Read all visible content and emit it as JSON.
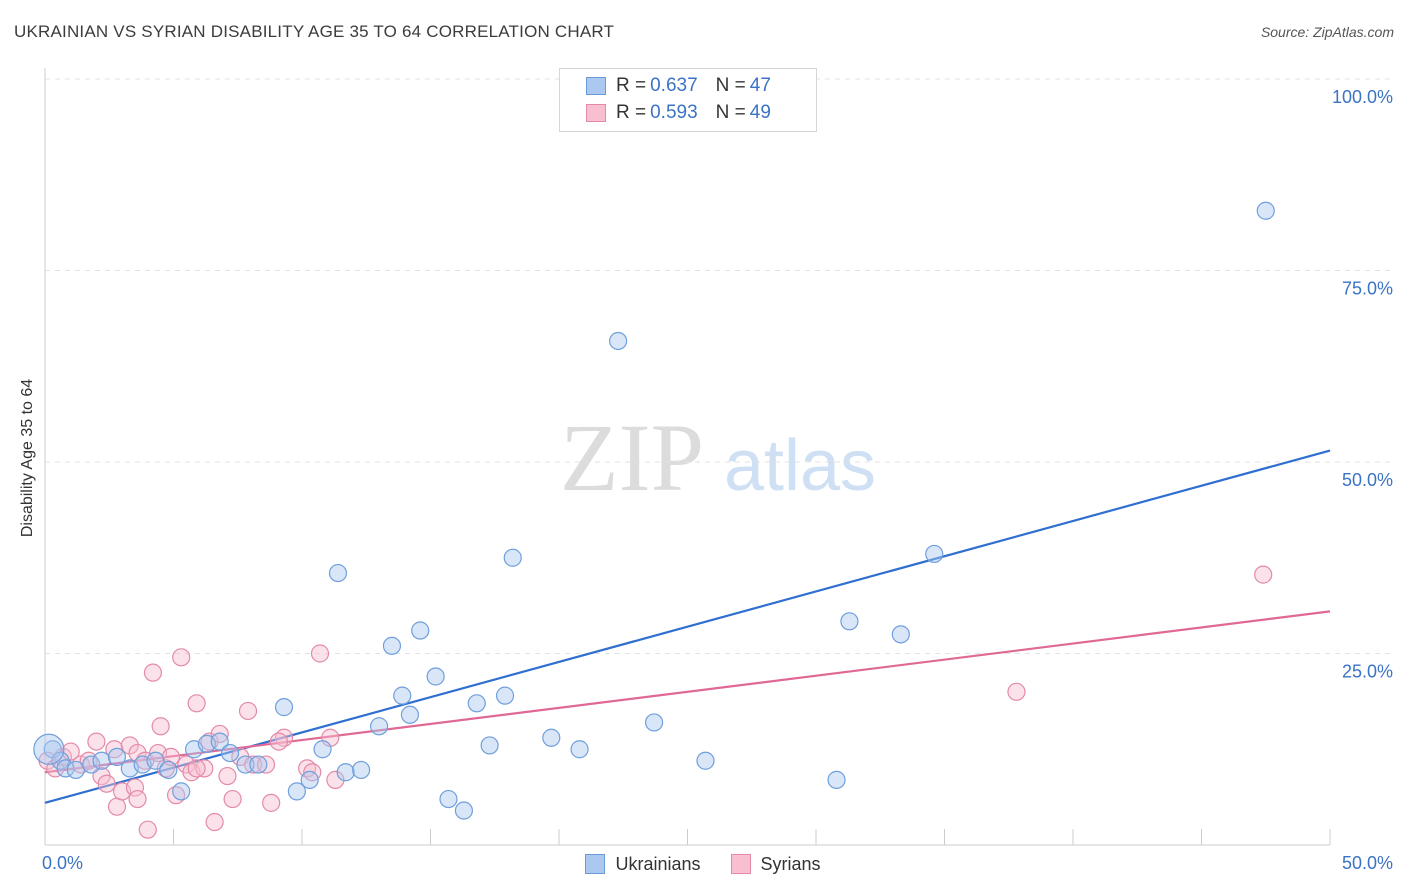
{
  "title": "UKRAINIAN VS SYRIAN DISABILITY AGE 35 TO 64 CORRELATION CHART",
  "source": "Source: ZipAtlas.com",
  "watermark": {
    "zip": "ZIP",
    "atlas": "atlas"
  },
  "legend": {
    "r_label": "R =",
    "n_label": "N =",
    "rows": [
      {
        "r": "0.637",
        "n": "47",
        "color": "#aac8f0",
        "border": "#6a9ad8"
      },
      {
        "r": "0.593",
        "n": "49",
        "color": "#f7bfd0",
        "border": "#e48aa8"
      }
    ]
  },
  "bottom_legend": [
    "Ukrainians",
    "Syrians"
  ],
  "chart_data": {
    "type": "scatter",
    "title": "UKRAINIAN VS SYRIAN DISABILITY AGE 35 TO 64 CORRELATION CHART",
    "xlabel": "",
    "ylabel": "Disability Age 35 to 64",
    "xlim": [
      0,
      50
    ],
    "ylim": [
      0,
      100
    ],
    "x_tick_labels": [
      "0.0%",
      "50.0%"
    ],
    "y_ticks": [
      25,
      50,
      75,
      100
    ],
    "y_tick_labels": [
      "25.0%",
      "50.0%",
      "75.0%",
      "100.0%"
    ],
    "series": [
      {
        "name": "Ukrainians",
        "color": "#6f9fdc",
        "fill": "#aac8f0",
        "line_color": "#2f6fd0",
        "trend": {
          "x": [
            0,
            50
          ],
          "y": [
            5.5,
            51.5
          ]
        },
        "points": [
          [
            0.3,
            12.5
          ],
          [
            0.6,
            11
          ],
          [
            0.8,
            10
          ],
          [
            1.2,
            9.8
          ],
          [
            1.8,
            10.5
          ],
          [
            2.2,
            11
          ],
          [
            2.8,
            11.5
          ],
          [
            3.3,
            10
          ],
          [
            3.8,
            10.5
          ],
          [
            4.3,
            11
          ],
          [
            4.8,
            9.8
          ],
          [
            5.3,
            7
          ],
          [
            5.8,
            12.5
          ],
          [
            6.3,
            13.2
          ],
          [
            6.8,
            13.5
          ],
          [
            7.2,
            12
          ],
          [
            7.8,
            10.5
          ],
          [
            8.3,
            10.5
          ],
          [
            9.3,
            18
          ],
          [
            9.8,
            7
          ],
          [
            10.3,
            8.5
          ],
          [
            10.8,
            12.5
          ],
          [
            11.4,
            35.5
          ],
          [
            11.7,
            9.5
          ],
          [
            12.3,
            9.8
          ],
          [
            13.0,
            15.5
          ],
          [
            13.5,
            26
          ],
          [
            13.9,
            19.5
          ],
          [
            14.2,
            17
          ],
          [
            14.6,
            28
          ],
          [
            15.2,
            22
          ],
          [
            15.7,
            6
          ],
          [
            16.3,
            4.5
          ],
          [
            16.8,
            18.5
          ],
          [
            17.3,
            13
          ],
          [
            17.9,
            19.5
          ],
          [
            18.2,
            37.5
          ],
          [
            19.7,
            14
          ],
          [
            20.8,
            12.5
          ],
          [
            22.3,
            65.8
          ],
          [
            23.7,
            16
          ],
          [
            25.7,
            11
          ],
          [
            30.8,
            8.5
          ],
          [
            31.3,
            29.2
          ],
          [
            33.3,
            27.5
          ],
          [
            34.6,
            38
          ],
          [
            47.5,
            82.8
          ]
        ]
      },
      {
        "name": "Syrians",
        "color": "#e48aa8",
        "fill": "#f7bfd0",
        "line_color": "#e06895",
        "trend": {
          "x": [
            0,
            50
          ],
          "y": [
            9.5,
            30.5
          ]
        },
        "points": [
          [
            0.1,
            11
          ],
          [
            0.4,
            10
          ],
          [
            0.7,
            11.5
          ],
          [
            1.0,
            12.2
          ],
          [
            1.4,
            10.5
          ],
          [
            1.7,
            11
          ],
          [
            2.0,
            13.5
          ],
          [
            2.2,
            9
          ],
          [
            2.4,
            8
          ],
          [
            2.7,
            12.5
          ],
          [
            2.8,
            5
          ],
          [
            3.0,
            7
          ],
          [
            3.3,
            13
          ],
          [
            3.5,
            7.5
          ],
          [
            3.6,
            12
          ],
          [
            3.9,
            11
          ],
          [
            4.0,
            2
          ],
          [
            4.2,
            22.5
          ],
          [
            4.4,
            12
          ],
          [
            4.5,
            15.5
          ],
          [
            4.7,
            10
          ],
          [
            4.9,
            11.5
          ],
          [
            5.1,
            6.5
          ],
          [
            5.3,
            24.5
          ],
          [
            5.5,
            10.5
          ],
          [
            5.7,
            9.5
          ],
          [
            5.9,
            18.5
          ],
          [
            6.2,
            10
          ],
          [
            6.4,
            13.5
          ],
          [
            6.6,
            3
          ],
          [
            6.8,
            14.5
          ],
          [
            7.1,
            9
          ],
          [
            7.3,
            6
          ],
          [
            7.6,
            11.5
          ],
          [
            7.9,
            17.5
          ],
          [
            8.1,
            10.5
          ],
          [
            8.6,
            10.5
          ],
          [
            8.8,
            5.5
          ],
          [
            9.3,
            14
          ],
          [
            9.1,
            13.5
          ],
          [
            10.2,
            10
          ],
          [
            10.4,
            9.5
          ],
          [
            10.7,
            25
          ],
          [
            11.1,
            14
          ],
          [
            11.3,
            8.5
          ],
          [
            3.6,
            6
          ],
          [
            5.9,
            10
          ],
          [
            37.8,
            20
          ],
          [
            47.4,
            35.3
          ]
        ]
      }
    ]
  }
}
